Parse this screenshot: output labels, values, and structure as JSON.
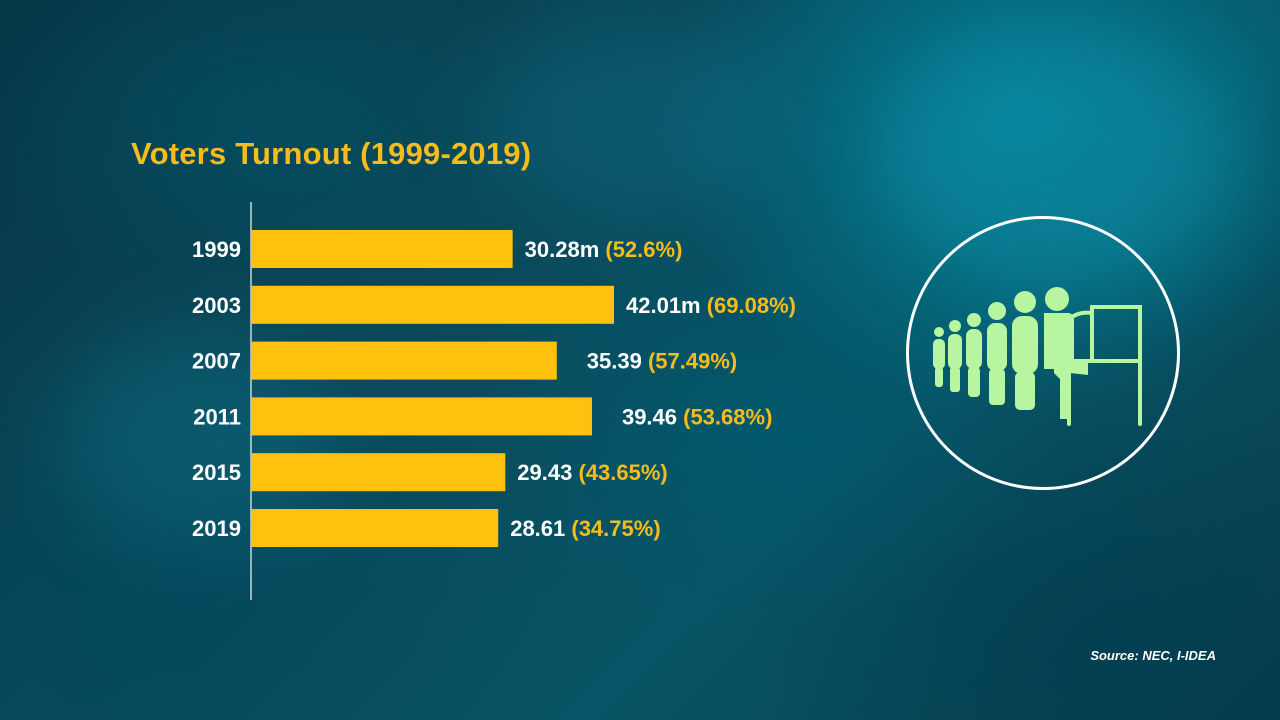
{
  "title": "Voters Turnout (1999-2019)",
  "source": "Source: NEC, I-IDEA",
  "colors": {
    "bar": "#fec20e",
    "title": "#f7bb1c",
    "value_text": "#ffffff",
    "percent_text": "#f7bb1c",
    "icon": "#b8f5a0"
  },
  "icon": "voters-queue-ballot-booth-icon",
  "chart_data": {
    "type": "bar",
    "orientation": "horizontal",
    "title": "Voters Turnout (1999-2019)",
    "categories": [
      "1999",
      "2003",
      "2007",
      "2011",
      "2015",
      "2019"
    ],
    "series": [
      {
        "values": [
          30.28,
          42.01,
          35.39,
          39.46,
          29.43,
          28.61
        ]
      }
    ],
    "turnout_percent": [
      52.6,
      69.08,
      57.49,
      53.68,
      43.65,
      34.75
    ],
    "value_labels": [
      "30.28m",
      "42.01m",
      "35.39",
      "39.46",
      "29.43",
      "28.61"
    ],
    "percent_labels": [
      "(52.6%)",
      "(69.08%)",
      "(57.49%)",
      "(53.68%)",
      "(43.65%)",
      "(34.75%)"
    ],
    "xlabel": "",
    "ylabel": "",
    "grid": false,
    "legend": "none"
  }
}
